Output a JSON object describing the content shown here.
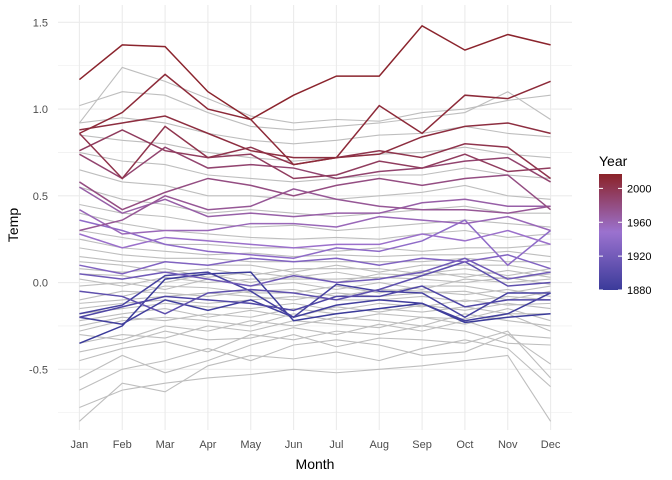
{
  "chart_data": {
    "type": "line",
    "xlabel": "Month",
    "ylabel": "Temp",
    "categories": [
      "Jan",
      "Feb",
      "Mar",
      "Apr",
      "May",
      "Jun",
      "Jul",
      "Aug",
      "Sep",
      "Oct",
      "Nov",
      "Dec"
    ],
    "ylim": [
      -0.85,
      1.6
    ],
    "yticks": [
      -0.5,
      0.0,
      0.5,
      1.0,
      1.5
    ],
    "ytick_labels": [
      "-0.5",
      "0.0",
      "0.5",
      "1.0",
      "1.5"
    ],
    "grid": true,
    "background_line_color": "#bebebe",
    "legend": {
      "title": "Year",
      "position": "right",
      "ticks": [
        1880,
        1920,
        1960,
        2000
      ],
      "tick_labels": [
        "1880",
        "1920",
        "1960",
        "2000"
      ],
      "range": [
        1880,
        2017
      ],
      "gradient": [
        "#3b3b9a",
        "#9b72cf",
        "#8b2228"
      ]
    },
    "background_series": [
      [
        -0.72,
        -0.62,
        -0.58,
        -0.55,
        -0.53,
        -0.5,
        -0.52,
        -0.5,
        -0.48,
        -0.45,
        -0.42,
        -0.8
      ],
      [
        -0.8,
        -0.58,
        -0.63,
        -0.48,
        -0.42,
        -0.44,
        -0.4,
        -0.45,
        -0.38,
        -0.33,
        -0.38,
        -0.6
      ],
      [
        -0.62,
        -0.5,
        -0.45,
        -0.38,
        -0.45,
        -0.36,
        -0.33,
        -0.36,
        -0.42,
        -0.4,
        -0.3,
        -0.47
      ],
      [
        -0.55,
        -0.42,
        -0.52,
        -0.45,
        -0.36,
        -0.3,
        -0.37,
        -0.32,
        -0.33,
        -0.35,
        -0.28,
        -0.55
      ],
      [
        -0.45,
        -0.38,
        -0.34,
        -0.4,
        -0.3,
        -0.33,
        -0.28,
        -0.3,
        -0.25,
        -0.28,
        -0.35,
        -0.36
      ],
      [
        -0.4,
        -0.35,
        -0.28,
        -0.33,
        -0.32,
        -0.26,
        -0.3,
        -0.24,
        -0.28,
        -0.22,
        -0.3,
        -0.32
      ],
      [
        -0.35,
        -0.3,
        -0.32,
        -0.25,
        -0.28,
        -0.22,
        -0.24,
        -0.26,
        -0.2,
        -0.24,
        -0.18,
        -0.28
      ],
      [
        -0.3,
        -0.33,
        -0.25,
        -0.28,
        -0.22,
        -0.25,
        -0.2,
        -0.22,
        -0.25,
        -0.18,
        -0.22,
        -0.25
      ],
      [
        -0.28,
        -0.22,
        -0.2,
        -0.22,
        -0.25,
        -0.18,
        -0.22,
        -0.18,
        -0.2,
        -0.21,
        -0.15,
        -0.22
      ],
      [
        -0.25,
        -0.2,
        -0.22,
        -0.18,
        -0.2,
        -0.15,
        -0.18,
        -0.15,
        -0.17,
        -0.14,
        -0.18,
        -0.18
      ],
      [
        -0.22,
        -0.18,
        -0.15,
        -0.2,
        -0.16,
        -0.2,
        -0.14,
        -0.17,
        -0.13,
        -0.16,
        -0.12,
        -0.15
      ],
      [
        -0.18,
        -0.15,
        -0.12,
        -0.14,
        -0.15,
        -0.12,
        -0.16,
        -0.12,
        -0.14,
        -0.1,
        -0.13,
        -0.12
      ],
      [
        -0.15,
        -0.12,
        -0.1,
        -0.12,
        -0.1,
        -0.08,
        -0.1,
        -0.1,
        -0.08,
        -0.11,
        -0.08,
        -0.1
      ],
      [
        -0.12,
        -0.1,
        -0.08,
        -0.06,
        -0.08,
        -0.1,
        -0.06,
        -0.08,
        -0.06,
        -0.05,
        -0.1,
        -0.05
      ],
      [
        -0.1,
        -0.05,
        -0.06,
        -0.08,
        -0.05,
        -0.04,
        -0.08,
        -0.04,
        -0.05,
        -0.07,
        -0.04,
        -0.08
      ],
      [
        -0.05,
        -0.08,
        -0.02,
        -0.03,
        -0.06,
        -0.06,
        -0.02,
        -0.06,
        -0.02,
        -0.02,
        -0.06,
        -0.02
      ],
      [
        -0.02,
        0.0,
        -0.04,
        0.02,
        -0.02,
        0.0,
        -0.04,
        0.0,
        -0.04,
        0.02,
        0.0,
        0.02
      ],
      [
        0.02,
        -0.02,
        0.03,
        0.0,
        0.02,
        0.02,
        0.02,
        0.03,
        0.02,
        0.0,
        0.03,
        -0.01
      ],
      [
        0.05,
        0.04,
        0.0,
        0.05,
        0.0,
        0.05,
        0.0,
        0.05,
        0.04,
        0.05,
        0.02,
        0.05
      ],
      [
        0.08,
        0.06,
        0.08,
        0.03,
        0.06,
        0.03,
        0.06,
        0.02,
        0.07,
        0.03,
        0.07,
        0.03
      ],
      [
        0.12,
        0.1,
        0.06,
        0.08,
        0.04,
        0.08,
        0.08,
        0.08,
        0.05,
        0.08,
        0.04,
        0.08
      ],
      [
        0.15,
        0.12,
        0.12,
        0.1,
        0.1,
        0.06,
        0.1,
        0.06,
        0.1,
        0.1,
        0.1,
        0.06
      ],
      [
        0.2,
        0.16,
        0.14,
        0.14,
        0.12,
        0.12,
        0.12,
        0.12,
        0.12,
        0.14,
        0.12,
        0.12
      ],
      [
        0.25,
        0.2,
        0.18,
        0.16,
        0.17,
        0.15,
        0.16,
        0.15,
        0.16,
        0.16,
        0.18,
        0.15
      ],
      [
        0.3,
        0.26,
        0.22,
        0.22,
        0.2,
        0.2,
        0.18,
        0.2,
        0.18,
        0.2,
        0.2,
        0.22
      ],
      [
        0.4,
        0.34,
        0.3,
        0.28,
        0.26,
        0.25,
        0.26,
        0.25,
        0.28,
        0.3,
        0.26,
        0.28
      ],
      [
        0.45,
        0.4,
        0.38,
        0.34,
        0.32,
        0.33,
        0.3,
        0.32,
        0.34,
        0.36,
        0.34,
        0.32
      ],
      [
        0.55,
        0.48,
        0.45,
        0.4,
        0.42,
        0.4,
        0.38,
        0.4,
        0.42,
        0.44,
        0.4,
        0.4
      ],
      [
        0.65,
        0.58,
        0.56,
        0.5,
        0.5,
        0.48,
        0.48,
        0.5,
        0.52,
        0.56,
        0.5,
        0.48
      ],
      [
        0.75,
        0.7,
        0.68,
        0.62,
        0.6,
        0.58,
        0.6,
        0.62,
        0.62,
        0.66,
        0.62,
        0.6
      ],
      [
        0.85,
        0.82,
        0.8,
        0.75,
        0.72,
        0.7,
        0.72,
        0.74,
        0.75,
        0.78,
        0.74,
        0.72
      ],
      [
        0.92,
        0.95,
        0.92,
        0.86,
        0.82,
        0.8,
        0.82,
        0.85,
        0.86,
        0.9,
        0.86,
        0.84
      ],
      [
        1.02,
        1.1,
        1.08,
        0.98,
        0.9,
        0.88,
        0.9,
        0.92,
        0.95,
        0.98,
        1.1,
        0.94
      ],
      [
        0.92,
        1.24,
        1.16,
        1.06,
        0.96,
        0.92,
        0.94,
        0.93,
        0.98,
        1.0,
        1.05,
        1.08
      ]
    ],
    "series": [
      {
        "year": 1880,
        "values": [
          -0.35,
          -0.25,
          0.02,
          0.05,
          0.06,
          -0.22,
          -0.18,
          -0.15,
          -0.12,
          -0.23,
          -0.2,
          -0.18
        ]
      },
      {
        "year": 1884,
        "values": [
          -0.2,
          -0.24,
          -0.1,
          -0.16,
          -0.1,
          -0.2,
          -0.13,
          -0.1,
          -0.12,
          -0.22,
          -0.18,
          -0.06
        ]
      },
      {
        "year": 1888,
        "values": [
          -0.18,
          -0.13,
          0.04,
          0.06,
          -0.05,
          -0.2,
          -0.01,
          -0.05,
          -0.06,
          -0.2,
          -0.06,
          -0.06
        ]
      },
      {
        "year": 1894,
        "values": [
          -0.2,
          -0.14,
          -0.08,
          -0.1,
          -0.12,
          -0.16,
          -0.08,
          -0.08,
          -0.02,
          -0.14,
          -0.1,
          -0.1
        ]
      },
      {
        "year": 1905,
        "values": [
          -0.05,
          -0.08,
          -0.18,
          -0.06,
          -0.04,
          -0.06,
          -0.1,
          -0.04,
          0.04,
          0.12,
          -0.02,
          0.0
        ]
      },
      {
        "year": 1918,
        "values": [
          0.05,
          0.02,
          0.06,
          0.02,
          -0.02,
          0.04,
          0.0,
          0.02,
          0.06,
          0.14,
          0.02,
          0.06
        ]
      },
      {
        "year": 1930,
        "values": [
          0.1,
          0.05,
          0.12,
          0.1,
          0.14,
          0.12,
          0.14,
          0.1,
          0.14,
          0.12,
          0.16,
          0.08
        ]
      },
      {
        "year": 1940,
        "values": [
          0.36,
          0.3,
          0.22,
          0.18,
          0.16,
          0.14,
          0.2,
          0.18,
          0.24,
          0.36,
          0.1,
          0.3
        ]
      },
      {
        "year": 1950,
        "values": [
          0.28,
          0.2,
          0.26,
          0.24,
          0.22,
          0.2,
          0.22,
          0.22,
          0.28,
          0.24,
          0.3,
          0.22
        ]
      },
      {
        "year": 1958,
        "values": [
          0.42,
          0.28,
          0.3,
          0.3,
          0.34,
          0.34,
          0.32,
          0.38,
          0.36,
          0.34,
          0.38,
          0.3
        ]
      },
      {
        "year": 1965,
        "values": [
          0.55,
          0.4,
          0.48,
          0.38,
          0.4,
          0.38,
          0.4,
          0.4,
          0.46,
          0.48,
          0.44,
          0.44
        ]
      },
      {
        "year": 1972,
        "values": [
          0.3,
          0.36,
          0.5,
          0.42,
          0.44,
          0.54,
          0.48,
          0.44,
          0.42,
          0.42,
          0.4,
          0.44
        ]
      },
      {
        "year": 1980,
        "values": [
          0.58,
          0.42,
          0.52,
          0.6,
          0.56,
          0.5,
          0.56,
          0.6,
          0.56,
          0.6,
          0.62,
          0.42
        ]
      },
      {
        "year": 1988,
        "values": [
          0.74,
          0.6,
          0.78,
          0.66,
          0.68,
          0.66,
          0.6,
          0.64,
          0.66,
          0.7,
          0.72,
          0.58
        ]
      },
      {
        "year": 1995,
        "values": [
          0.76,
          0.88,
          0.76,
          0.72,
          0.74,
          0.6,
          0.62,
          0.7,
          0.66,
          0.74,
          0.64,
          0.66
        ]
      },
      {
        "year": 2002,
        "values": [
          0.86,
          0.6,
          0.9,
          0.72,
          0.78,
          0.68,
          0.72,
          0.76,
          0.72,
          0.8,
          0.78,
          0.6
        ]
      },
      {
        "year": 2007,
        "values": [
          0.88,
          0.92,
          0.96,
          0.86,
          0.76,
          0.72,
          0.72,
          0.74,
          0.84,
          0.9,
          0.92,
          0.86
        ]
      },
      {
        "year": 2010,
        "values": [
          0.86,
          0.98,
          1.2,
          1.0,
          0.94,
          0.68,
          0.72,
          1.02,
          0.86,
          1.08,
          1.06,
          1.16
        ]
      },
      {
        "year": 2015,
        "values": [
          1.17,
          1.37,
          1.36,
          1.1,
          0.94,
          1.08,
          1.19,
          1.19,
          1.48,
          1.34,
          1.43,
          1.37
        ]
      }
    ]
  }
}
